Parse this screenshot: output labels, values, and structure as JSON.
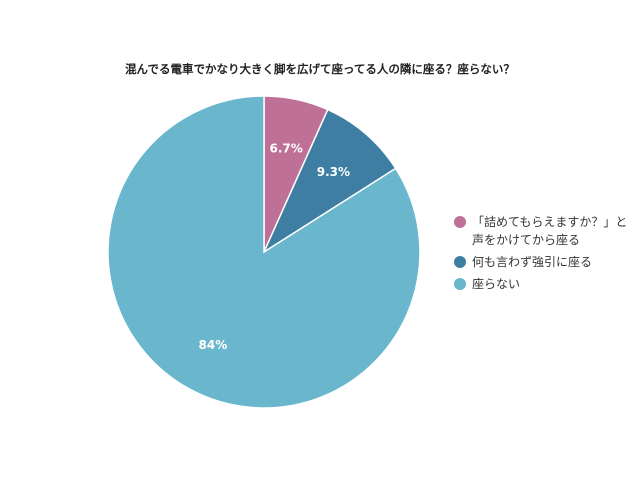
{
  "chart_data": {
    "type": "pie",
    "title": "混んでる電車でかなり大きく脚を広げて座ってる人の隣に座る？座らない？",
    "categories": [
      [
        "「詰めてもらえますか？」と",
        "声をかけてから座る"
      ],
      [
        "何も言わず強引に座る"
      ],
      [
        "座らない"
      ]
    ],
    "values": [
      6.7,
      9.3,
      84
    ],
    "value_labels": [
      "6.7%",
      "9.3%",
      "84%"
    ],
    "colors": [
      "#be7097",
      "#3f7ea3",
      "#6ab6cc"
    ],
    "legend_position": "right"
  }
}
